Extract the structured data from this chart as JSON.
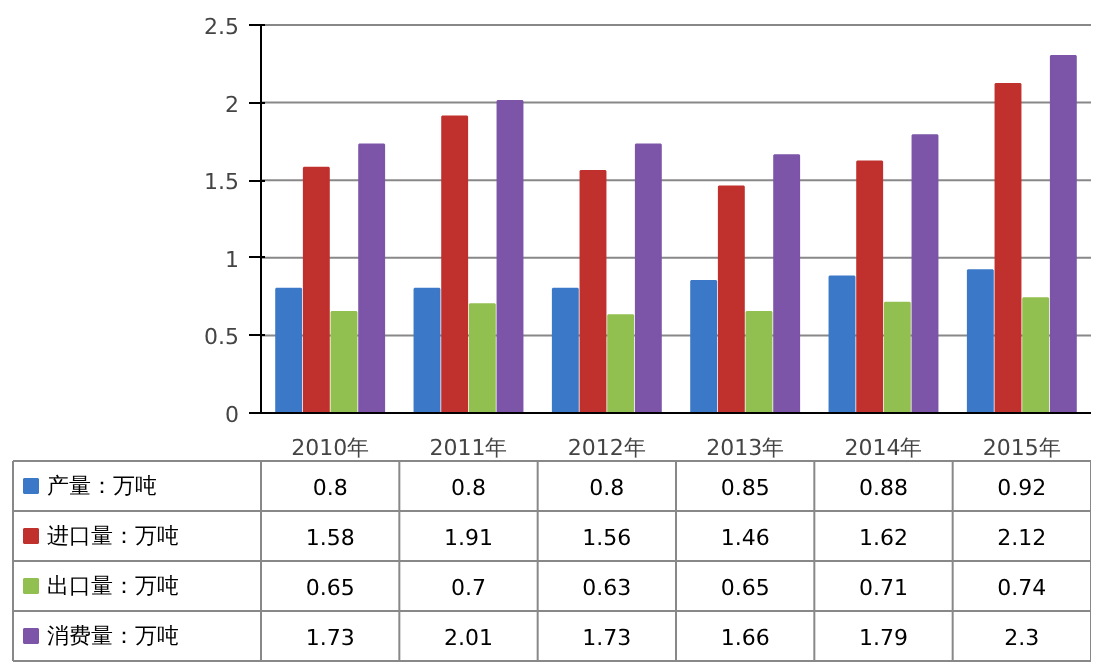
{
  "chart_data": {
    "type": "bar",
    "categories": [
      "2010年",
      "2011年",
      "2012年",
      "2013年",
      "2014年",
      "2015年"
    ],
    "series": [
      {
        "name": "产量：万吨",
        "color": "#3c78c8",
        "values": [
          0.8,
          0.8,
          0.8,
          0.85,
          0.88,
          0.92
        ]
      },
      {
        "name": "进口量：万吨",
        "color": "#c0302c",
        "values": [
          1.58,
          1.91,
          1.56,
          1.46,
          1.62,
          2.12
        ]
      },
      {
        "name": "出口量：万吨",
        "color": "#92c050",
        "values": [
          0.65,
          0.7,
          0.63,
          0.65,
          0.71,
          0.74
        ]
      },
      {
        "name": "消费量：万吨",
        "color": "#7c54a8",
        "values": [
          1.73,
          2.01,
          1.73,
          1.66,
          1.79,
          2.3
        ]
      }
    ],
    "ylim": [
      0,
      2.5
    ],
    "yticks": [
      0,
      0.5,
      1,
      1.5,
      2,
      2.5
    ],
    "grid": "y",
    "legend": "bottom",
    "data_labels": true
  }
}
